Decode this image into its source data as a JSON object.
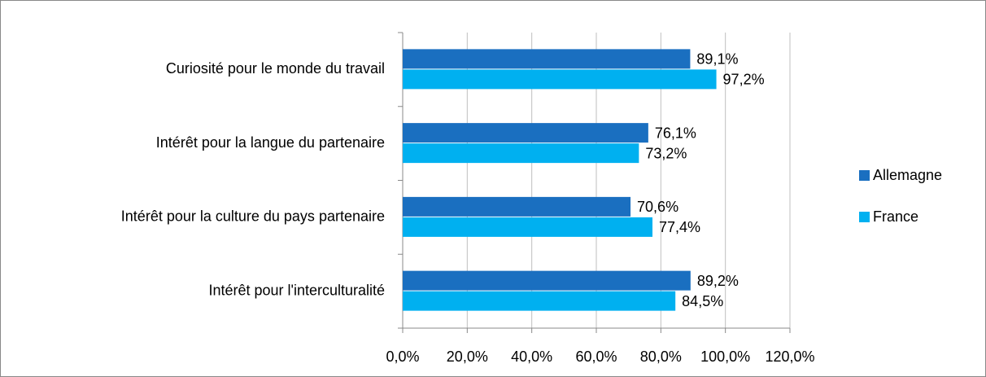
{
  "chart_data": {
    "type": "bar",
    "orientation": "horizontal",
    "categories": [
      "Curiosité pour le monde du travail",
      "Intérêt pour la langue du partenaire",
      "Intérêt pour la culture du pays partenaire",
      "Intérêt pour l'interculturalité"
    ],
    "series": [
      {
        "name": "Allemagne",
        "color": "#1a6fc0",
        "values": [
          89.1,
          76.1,
          70.6,
          89.2
        ],
        "value_labels": [
          "89,1%",
          "76,1%",
          "70,6%",
          "89,2%"
        ]
      },
      {
        "name": "France",
        "color": "#00b0f0",
        "values": [
          97.2,
          73.2,
          77.4,
          84.5
        ],
        "value_labels": [
          "97,2%",
          "73,2%",
          "77,4%",
          "84,5%"
        ]
      }
    ],
    "xlim": [
      0,
      120
    ],
    "xticks": [
      {
        "value": 0,
        "label": "0,0%"
      },
      {
        "value": 20,
        "label": "20,0%"
      },
      {
        "value": 40,
        "label": "40,0%"
      },
      {
        "value": 60,
        "label": "60,0%"
      },
      {
        "value": 80,
        "label": "80,0%"
      },
      {
        "value": 100,
        "label": "100,0%"
      },
      {
        "value": 120,
        "label": "120,0%"
      }
    ],
    "grid": true,
    "legend": "right"
  }
}
